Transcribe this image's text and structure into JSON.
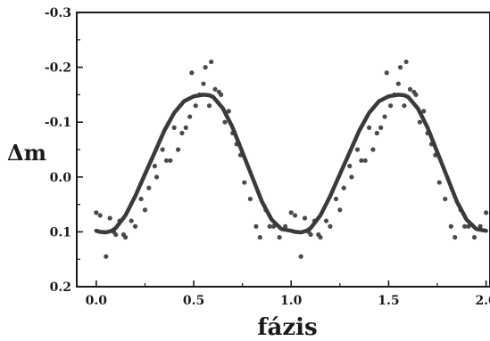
{
  "chart_data": {
    "type": "scatter",
    "xlabel": "fázis",
    "ylabel": "Δm",
    "xlim": [
      -0.1,
      2.02
    ],
    "ylim": [
      0.2,
      -0.3
    ],
    "y_inverted": true,
    "grid": false,
    "x_ticks": [
      "0.0",
      "0.5",
      "1.0",
      "1.5",
      "2.0"
    ],
    "x_tick_values": [
      0,
      0.5,
      1.0,
      1.5,
      2.0
    ],
    "y_ticks": [
      "-0.3",
      "-0.2",
      "-0.1",
      "0.0",
      "0.1",
      "0.2"
    ],
    "y_tick_values": [
      -0.3,
      -0.2,
      -0.1,
      0.0,
      0.1,
      0.2
    ],
    "colors": {
      "points": "#4a4a4a",
      "curve": "#3a3a3a",
      "axes": "#1a1a1a"
    },
    "series": [
      {
        "kind": "points",
        "x": [
          0.0,
          0.02,
          0.05,
          0.07,
          0.09,
          0.1,
          0.12,
          0.14,
          0.15,
          0.18,
          0.2,
          0.23,
          0.25,
          0.27,
          0.3,
          0.31,
          0.34,
          0.36,
          0.38,
          0.4,
          0.42,
          0.44,
          0.46,
          0.48,
          0.49,
          0.51,
          0.53,
          0.55,
          0.56,
          0.58,
          0.59,
          0.61,
          0.63,
          0.64,
          0.66,
          0.68,
          0.7,
          0.72,
          0.74,
          0.76,
          0.79,
          0.82,
          0.84,
          0.87,
          0.89,
          0.91,
          0.94,
          0.97,
          1.0,
          1.02,
          1.05,
          1.07,
          1.09,
          1.1,
          1.12,
          1.14,
          1.15,
          1.18,
          1.2,
          1.23,
          1.25,
          1.27,
          1.3,
          1.31,
          1.34,
          1.36,
          1.38,
          1.4,
          1.42,
          1.44,
          1.46,
          1.48,
          1.49,
          1.51,
          1.53,
          1.55,
          1.56,
          1.58,
          1.59,
          1.61,
          1.63,
          1.64,
          1.66,
          1.68,
          1.7,
          1.72,
          1.74,
          1.76,
          1.79,
          1.82,
          1.84,
          1.87,
          1.89,
          1.91,
          1.94,
          1.97,
          2.0
        ],
        "y": [
          0.065,
          0.07,
          0.145,
          0.075,
          0.1,
          0.105,
          0.08,
          0.105,
          0.11,
          0.08,
          0.09,
          0.04,
          0.06,
          0.02,
          -0.02,
          0.0,
          -0.05,
          -0.03,
          -0.03,
          -0.09,
          -0.05,
          -0.08,
          -0.09,
          -0.11,
          -0.19,
          -0.13,
          -0.15,
          -0.17,
          -0.2,
          -0.13,
          -0.21,
          -0.16,
          -0.155,
          -0.15,
          -0.1,
          -0.12,
          -0.08,
          -0.06,
          -0.04,
          0.01,
          0.04,
          0.09,
          0.11,
          0.06,
          0.09,
          0.09,
          0.11,
          0.09,
          0.065,
          0.07,
          0.145,
          0.075,
          0.1,
          0.105,
          0.08,
          0.105,
          0.11,
          0.08,
          0.09,
          0.04,
          0.06,
          0.02,
          -0.02,
          0.0,
          -0.05,
          -0.03,
          -0.03,
          -0.09,
          -0.05,
          -0.08,
          -0.09,
          -0.11,
          -0.19,
          -0.13,
          -0.15,
          -0.17,
          -0.2,
          -0.13,
          -0.21,
          -0.16,
          -0.155,
          -0.15,
          -0.1,
          -0.12,
          -0.08,
          -0.06,
          -0.04,
          0.01,
          0.04,
          0.09,
          0.11,
          0.06,
          0.09,
          0.09,
          0.11,
          0.09,
          0.065
        ]
      },
      {
        "kind": "fit-curve",
        "x": [
          0.0,
          0.02,
          0.05,
          0.08,
          0.1,
          0.15,
          0.2,
          0.25,
          0.3,
          0.35,
          0.4,
          0.45,
          0.5,
          0.55,
          0.58,
          0.6,
          0.65,
          0.7,
          0.75,
          0.8,
          0.85,
          0.9,
          0.95,
          1.0,
          1.02,
          1.05,
          1.08,
          1.1,
          1.15,
          1.2,
          1.25,
          1.3,
          1.35,
          1.4,
          1.45,
          1.5,
          1.55,
          1.58,
          1.6,
          1.65,
          1.7,
          1.75,
          1.8,
          1.85,
          1.9,
          1.95,
          2.0
        ],
        "y": [
          0.098,
          0.1,
          0.101,
          0.098,
          0.093,
          0.07,
          0.035,
          -0.005,
          -0.045,
          -0.085,
          -0.117,
          -0.138,
          -0.147,
          -0.15,
          -0.149,
          -0.146,
          -0.125,
          -0.09,
          -0.045,
          0.0,
          0.045,
          0.078,
          0.095,
          0.098,
          0.1,
          0.101,
          0.098,
          0.093,
          0.07,
          0.035,
          -0.005,
          -0.045,
          -0.085,
          -0.117,
          -0.138,
          -0.147,
          -0.15,
          -0.149,
          -0.146,
          -0.125,
          -0.09,
          -0.045,
          0.0,
          0.045,
          0.078,
          0.095,
          0.098
        ]
      }
    ]
  }
}
